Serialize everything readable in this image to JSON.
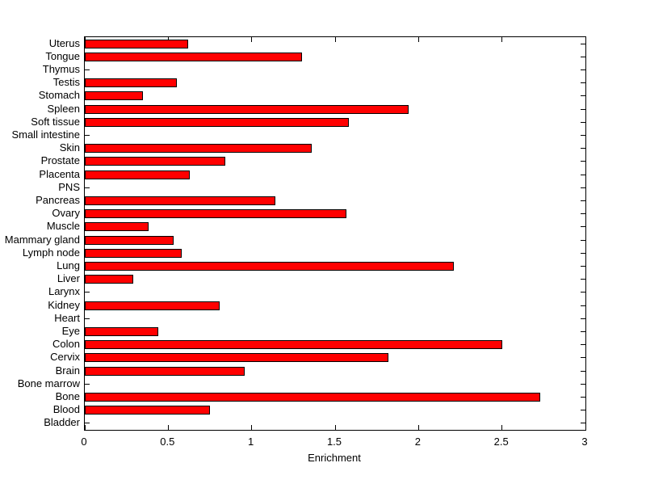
{
  "chart_data": {
    "type": "bar",
    "orientation": "horizontal",
    "title": "",
    "xlabel": "Enrichment",
    "ylabel": "",
    "xlim": [
      0,
      3
    ],
    "xticks": [
      0,
      0.5,
      1,
      1.5,
      2,
      2.5,
      3
    ],
    "xtick_labels": [
      "0",
      "0.5",
      "1",
      "1.5",
      "2",
      "2.5",
      "3"
    ],
    "grid": false,
    "legend": null,
    "bar_color": "#ff0000",
    "bar_edge_color": "#000000",
    "background_color": "#ffffff",
    "categories": [
      "Uterus",
      "Tongue",
      "Thymus",
      "Testis",
      "Stomach",
      "Spleen",
      "Soft tissue",
      "Small intestine",
      "Skin",
      "Prostate",
      "Placenta",
      "PNS",
      "Pancreas",
      "Ovary",
      "Muscle",
      "Mammary gland",
      "Lymph node",
      "Lung",
      "Liver",
      "Larynx",
      "Kidney",
      "Heart",
      "Eye",
      "Colon",
      "Cervix",
      "Brain",
      "Bone marrow",
      "Bone",
      "Blood",
      "Bladder"
    ],
    "values": [
      0.62,
      1.3,
      0,
      0.55,
      0.35,
      1.94,
      1.58,
      0,
      1.36,
      0.84,
      0.63,
      0,
      1.14,
      1.57,
      0.38,
      0.53,
      0.58,
      2.21,
      0.29,
      0,
      0.81,
      0,
      0.44,
      2.5,
      1.82,
      0.96,
      0,
      2.73,
      0.75,
      0
    ]
  }
}
